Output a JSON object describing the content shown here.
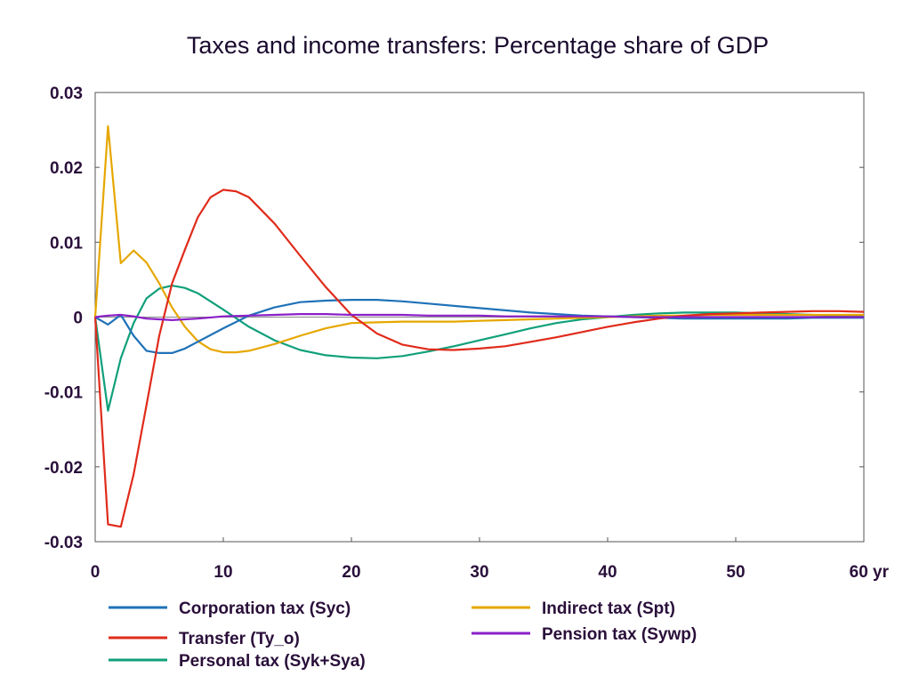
{
  "chart_data": {
    "type": "line",
    "title": "Taxes and income transfers: Percentage share of GDP",
    "xlabel": "",
    "ylabel": "",
    "x_unit_label": "yr",
    "xlim": [
      0,
      60
    ],
    "ylim": [
      -0.03,
      0.03
    ],
    "x_ticks": [
      0,
      10,
      20,
      30,
      40,
      50,
      60
    ],
    "x_tick_labels": [
      "0",
      "10",
      "20",
      "30",
      "40",
      "50",
      "60 yr"
    ],
    "y_ticks": [
      0.03,
      0.02,
      0.01,
      0,
      -0.01,
      -0.02,
      -0.03
    ],
    "y_tick_labels": [
      "0.03",
      "0.02",
      "0.01",
      "0",
      "-0.01",
      "-0.02",
      "-0.03"
    ],
    "grid": false,
    "legend_position": "bottom",
    "series": [
      {
        "name": "Corporation tax (Syc)",
        "color": "#1f72b8",
        "x": [
          0,
          1,
          2,
          3,
          4,
          5,
          6,
          7,
          8,
          10,
          12,
          14,
          16,
          18,
          20,
          22,
          24,
          26,
          28,
          30,
          32,
          34,
          36,
          38,
          40,
          42,
          44,
          46,
          48,
          50,
          52,
          54,
          56,
          58,
          60
        ],
        "y": [
          0,
          -0.001,
          0.0003,
          -0.0025,
          -0.0045,
          -0.0048,
          -0.0048,
          -0.0042,
          -0.0033,
          -0.0015,
          0.0002,
          0.0013,
          0.002,
          0.0022,
          0.0023,
          0.0023,
          0.0021,
          0.0018,
          0.0015,
          0.0012,
          0.0009,
          0.0006,
          0.0004,
          0.0002,
          0.0001,
          0.0,
          -0.0001,
          -0.0002,
          -0.0002,
          -0.0002,
          -0.0002,
          -0.0002,
          -0.0001,
          -0.0001,
          -0.0001
        ]
      },
      {
        "name": "Transfer (Ty_o)",
        "color": "#e02b1b",
        "x": [
          0,
          1,
          2,
          3,
          4,
          5,
          6,
          7,
          8,
          9,
          10,
          11,
          12,
          14,
          16,
          18,
          20,
          22,
          24,
          26,
          28,
          30,
          32,
          34,
          36,
          38,
          40,
          42,
          44,
          46,
          48,
          50,
          52,
          54,
          56,
          58,
          60
        ],
        "y": [
          0,
          -0.0277,
          -0.028,
          -0.021,
          -0.0118,
          -0.0025,
          0.0045,
          0.009,
          0.0133,
          0.016,
          0.017,
          0.0168,
          0.016,
          0.0125,
          0.0082,
          0.004,
          0.0003,
          -0.0022,
          -0.0037,
          -0.0043,
          -0.0044,
          -0.0042,
          -0.0039,
          -0.0033,
          -0.0027,
          -0.002,
          -0.0013,
          -0.0007,
          -0.0002,
          0.0002,
          0.0004,
          0.0005,
          0.0006,
          0.0007,
          0.0008,
          0.0008,
          0.0007
        ]
      },
      {
        "name": "Personal tax (Syk+Sya)",
        "color": "#10a07a",
        "x": [
          0,
          1,
          2,
          3,
          4,
          5,
          6,
          7,
          8,
          10,
          12,
          14,
          16,
          18,
          20,
          22,
          24,
          26,
          28,
          30,
          32,
          34,
          36,
          38,
          40,
          42,
          44,
          46,
          48,
          50,
          52,
          54,
          56,
          58,
          60
        ],
        "y": [
          0,
          -0.0125,
          -0.0055,
          -0.0008,
          0.0025,
          0.0038,
          0.0042,
          0.0039,
          0.0032,
          0.001,
          -0.0013,
          -0.0031,
          -0.0044,
          -0.0051,
          -0.0054,
          -0.0055,
          -0.0052,
          -0.0046,
          -0.0039,
          -0.0031,
          -0.0023,
          -0.0015,
          -0.0008,
          -0.0003,
          0.0,
          0.0003,
          0.0005,
          0.0006,
          0.0006,
          0.0006,
          0.0005,
          0.0004,
          0.0003,
          0.0002,
          0.0002
        ]
      },
      {
        "name": "Indirect tax (Spt)",
        "color": "#e6a700",
        "x": [
          0,
          1,
          2,
          3,
          4,
          5,
          6,
          7,
          8,
          9,
          10,
          11,
          12,
          14,
          16,
          18,
          20,
          22,
          24,
          26,
          28,
          30,
          32,
          34,
          36,
          38,
          40,
          42,
          44,
          46,
          48,
          50,
          52,
          54,
          56,
          58,
          60
        ],
        "y": [
          0,
          0.0255,
          0.0072,
          0.0089,
          0.0073,
          0.0045,
          0.0013,
          -0.0013,
          -0.0032,
          -0.0043,
          -0.0047,
          -0.0047,
          -0.0045,
          -0.0036,
          -0.0025,
          -0.0015,
          -0.0008,
          -0.0007,
          -0.0006,
          -0.0006,
          -0.0006,
          -0.0005,
          -0.0004,
          -0.0003,
          -0.0002,
          -0.0001,
          0.0,
          0.0001,
          0.0002,
          0.0002,
          0.0003,
          0.0003,
          0.0003,
          0.0003,
          0.0003,
          0.0003,
          0.0003
        ]
      },
      {
        "name": "Pension tax (Sywp)",
        "color": "#8a1fc7",
        "x": [
          0,
          1,
          2,
          3,
          4,
          5,
          6,
          7,
          8,
          10,
          12,
          14,
          16,
          18,
          20,
          22,
          24,
          26,
          28,
          30,
          32,
          34,
          36,
          38,
          40,
          42,
          44,
          46,
          48,
          50,
          52,
          54,
          56,
          58,
          60
        ],
        "y": [
          0,
          0.0002,
          0.0003,
          0.0001,
          -0.0002,
          -0.0003,
          -0.0004,
          -0.0003,
          -0.0002,
          0.0001,
          0.0002,
          0.0003,
          0.0004,
          0.0004,
          0.0003,
          0.0003,
          0.0003,
          0.0002,
          0.0002,
          0.0002,
          0.0001,
          0.0001,
          0.0001,
          0.0001,
          0.0001,
          0.0,
          0.0,
          0.0,
          0.0,
          0.0,
          0.0,
          0.0,
          0.0,
          0.0,
          0.0
        ]
      }
    ],
    "legend_columns": [
      [
        "Corporation tax (Syc)",
        "Transfer (Ty_o)",
        "Personal tax (Syk+Sya)"
      ],
      [
        "Indirect tax (Spt)",
        "Pension tax (Sywp)"
      ]
    ]
  }
}
